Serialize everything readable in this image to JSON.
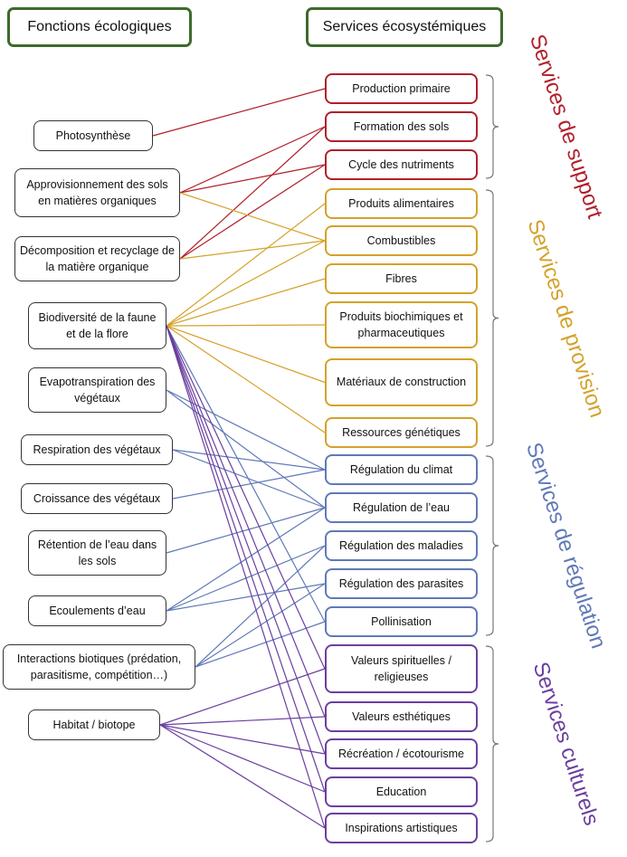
{
  "headers": {
    "functions": "Fonctions écologiques",
    "services": "Services écosystémiques"
  },
  "functions": [
    "Photosynthèse",
    "Approvisionnement des sols en matières organiques",
    "Décomposition et recyclage de la matière organique",
    "Biodiversité de la faune et de la flore",
    "Evapotranspiration des végétaux",
    "Respiration des végétaux",
    "Croissance des végétaux",
    "Rétention de l’eau dans les sols",
    "Ecoulements d’eau",
    "Interactions biotiques (prédation, parasitisme, compétition…)",
    "Habitat / biotope"
  ],
  "services": [
    "Production primaire",
    "Formation des sols",
    "Cycle des nutriments",
    "Produits alimentaires",
    "Combustibles",
    "Fibres",
    "Produits biochimiques et pharmaceutiques",
    "Matériaux de construction",
    "Ressources génétiques",
    "Régulation du climat",
    "Régulation de l’eau",
    "Régulation des maladies",
    "Régulation des parasites",
    "Pollinisation",
    "Valeurs spirituelles / religieuses",
    "Valeurs esthétiques",
    "Récréation / écotourisme",
    "Education",
    "Inspirations artistiques"
  ],
  "categories": [
    {
      "label": "Services de support",
      "color": "#b0202a",
      "services": [
        0,
        2
      ]
    },
    {
      "label": "Services de provision",
      "color": "#d4a22a",
      "services": [
        3,
        8
      ]
    },
    {
      "label": "Services de régulation",
      "color": "#6079b8",
      "services": [
        9,
        13
      ]
    },
    {
      "label": "Services culturels",
      "color": "#6b3fa0",
      "services": [
        14,
        18
      ]
    }
  ],
  "links": [
    [
      0,
      0
    ],
    [
      1,
      1
    ],
    [
      1,
      2
    ],
    [
      2,
      1
    ],
    [
      2,
      2
    ],
    [
      1,
      4
    ],
    [
      2,
      4
    ],
    [
      3,
      3
    ],
    [
      3,
      4
    ],
    [
      3,
      5
    ],
    [
      3,
      6
    ],
    [
      3,
      7
    ],
    [
      3,
      8
    ],
    [
      4,
      9
    ],
    [
      4,
      10
    ],
    [
      5,
      9
    ],
    [
      5,
      10
    ],
    [
      6,
      9
    ],
    [
      7,
      10
    ],
    [
      8,
      10
    ],
    [
      8,
      11
    ],
    [
      8,
      12
    ],
    [
      9,
      11
    ],
    [
      9,
      12
    ],
    [
      9,
      13
    ],
    [
      3,
      13
    ],
    [
      3,
      14
    ],
    [
      3,
      15
    ],
    [
      3,
      16
    ],
    [
      3,
      17
    ],
    [
      3,
      18
    ],
    [
      10,
      14
    ],
    [
      10,
      15
    ],
    [
      10,
      16
    ],
    [
      10,
      17
    ],
    [
      10,
      18
    ]
  ]
}
